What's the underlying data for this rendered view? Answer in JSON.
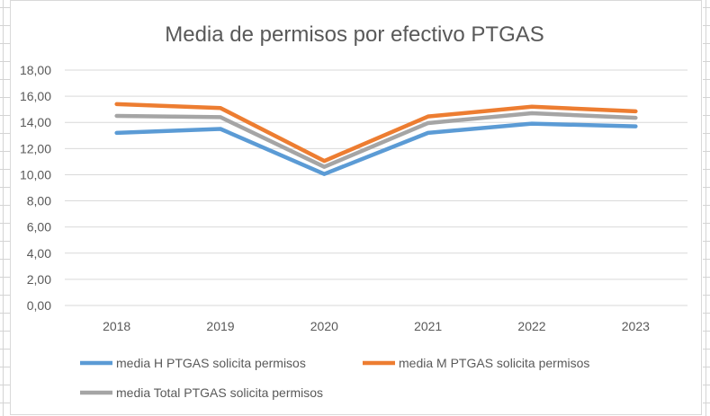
{
  "chart_data": {
    "type": "line",
    "title": "Media de permisos por efectivo PTGAS",
    "categories": [
      "2018",
      "2019",
      "2020",
      "2021",
      "2022",
      "2023"
    ],
    "y_ticks": [
      "0,00",
      "2,00",
      "4,00",
      "6,00",
      "8,00",
      "10,00",
      "12,00",
      "14,00",
      "16,00",
      "18,00"
    ],
    "ylim": [
      0,
      18
    ],
    "grid": true,
    "legend_position": "bottom",
    "series": [
      {
        "name": "media H PTGAS solicita permisos",
        "color": "#5b9bd5",
        "values": [
          13.2,
          13.5,
          10.05,
          13.2,
          13.9,
          13.7
        ]
      },
      {
        "name": "media M PTGAS solicita permisos",
        "color": "#ed7d31",
        "values": [
          15.4,
          15.1,
          11.05,
          14.45,
          15.2,
          14.85
        ]
      },
      {
        "name": "media Total PTGAS solicita permisos",
        "color": "#a5a5a5",
        "values": [
          14.5,
          14.4,
          10.6,
          13.95,
          14.7,
          14.35
        ]
      }
    ]
  }
}
